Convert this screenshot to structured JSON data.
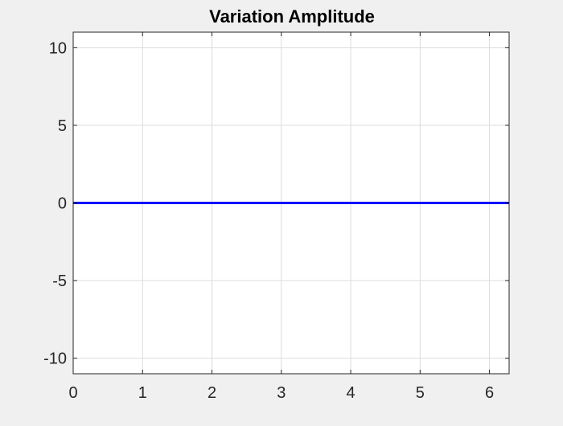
{
  "figure": {
    "background": "#f0f0f0"
  },
  "chart_data": {
    "type": "line",
    "title": "Variation Amplitude",
    "xlabel": "",
    "ylabel": "",
    "xlim": [
      0,
      6.283
    ],
    "ylim": [
      -11,
      11
    ],
    "xticks": [
      0,
      1,
      2,
      3,
      4,
      5,
      6
    ],
    "yticks": [
      -10,
      -5,
      0,
      5,
      10
    ],
    "xtick_labels": [
      "0",
      "1",
      "2",
      "3",
      "4",
      "5",
      "6"
    ],
    "ytick_labels": [
      "-10",
      "-5",
      "0",
      "5",
      "10"
    ],
    "grid": true,
    "series": [
      {
        "color": "#0000ff",
        "x": [
          0,
          6.283
        ],
        "y": [
          0,
          0
        ]
      }
    ],
    "colors": {
      "axes_background": "#ffffff",
      "grid": "#dcdcdc",
      "axis": "#262626"
    }
  }
}
